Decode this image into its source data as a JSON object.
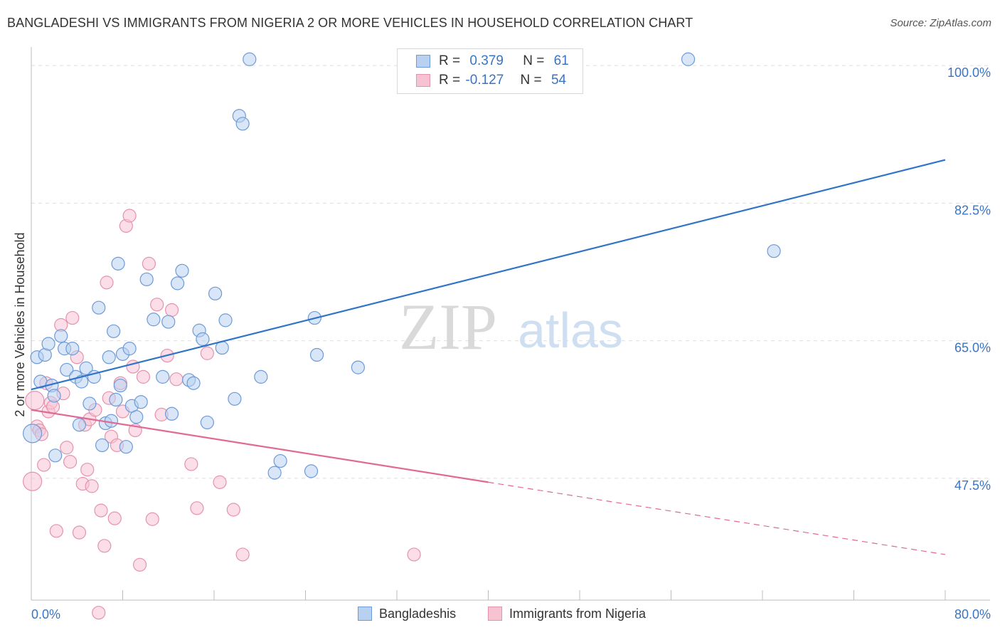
{
  "title": "BANGLADESHI VS IMMIGRANTS FROM NIGERIA 2 OR MORE VEHICLES IN HOUSEHOLD CORRELATION CHART",
  "source": "Source: ZipAtlas.com",
  "watermark": {
    "zip": "ZIP",
    "atlas": "atlas"
  },
  "colors": {
    "blue_fill": "#b8d1f0",
    "blue_stroke": "#6d9ad8",
    "blue_line": "#2f74c8",
    "pink_fill": "#f7c3d3",
    "pink_stroke": "#e593ad",
    "pink_line": "#e06a95",
    "tick_label": "#3a74c4"
  },
  "legend": {
    "rows": [
      {
        "r_label": "R =",
        "r_value": "0.379",
        "n_label": "N =",
        "n_value": "61"
      },
      {
        "r_label": "R =",
        "r_value": "-0.127",
        "n_label": "N =",
        "n_value": "54"
      }
    ]
  },
  "bottom_legend": [
    "Bangladeshis",
    "Immigrants from Nigeria"
  ],
  "chart_data": {
    "type": "scatter",
    "xlabel": "",
    "ylabel": "2 or more Vehicles in Household",
    "xlim": [
      0,
      80
    ],
    "ylim": [
      32,
      102
    ],
    "x_tick_labels": [
      "0.0%",
      "80.0%"
    ],
    "y_ticks": [
      100,
      82.5,
      65,
      47.5
    ],
    "y_tick_labels": [
      "100.0%",
      "82.5%",
      "65.0%",
      "47.5%"
    ],
    "series": [
      {
        "name": "Bangladeshis",
        "r": 0.379,
        "n": 61,
        "trend": {
          "x0": 0,
          "y0": 58.8,
          "x1": 80,
          "y1": 88.0
        },
        "points": [
          [
            0.1,
            53.2
          ],
          [
            0.5,
            62.9
          ],
          [
            0.8,
            59.8
          ],
          [
            1.2,
            63.2
          ],
          [
            1.5,
            64.6
          ],
          [
            1.8,
            59.3
          ],
          [
            2.0,
            58.0
          ],
          [
            2.1,
            50.4
          ],
          [
            2.6,
            65.6
          ],
          [
            2.9,
            64.0
          ],
          [
            3.1,
            61.3
          ],
          [
            3.6,
            64.0
          ],
          [
            3.9,
            60.4
          ],
          [
            4.2,
            54.3
          ],
          [
            4.4,
            59.8
          ],
          [
            4.8,
            61.5
          ],
          [
            5.1,
            57.0
          ],
          [
            5.5,
            60.4
          ],
          [
            5.9,
            69.2
          ],
          [
            6.2,
            51.7
          ],
          [
            6.5,
            54.5
          ],
          [
            6.8,
            62.9
          ],
          [
            7.0,
            54.8
          ],
          [
            7.2,
            66.2
          ],
          [
            7.4,
            57.5
          ],
          [
            7.6,
            74.8
          ],
          [
            7.8,
            59.3
          ],
          [
            8.0,
            63.3
          ],
          [
            8.3,
            51.5
          ],
          [
            8.6,
            64.0
          ],
          [
            8.8,
            56.7
          ],
          [
            9.2,
            55.3
          ],
          [
            9.6,
            57.2
          ],
          [
            10.1,
            72.8
          ],
          [
            10.7,
            67.7
          ],
          [
            11.5,
            60.4
          ],
          [
            12.0,
            67.4
          ],
          [
            12.3,
            55.7
          ],
          [
            12.8,
            72.3
          ],
          [
            13.2,
            73.9
          ],
          [
            13.8,
            60.0
          ],
          [
            14.2,
            59.6
          ],
          [
            14.7,
            66.3
          ],
          [
            15.0,
            65.2
          ],
          [
            15.4,
            54.6
          ],
          [
            16.1,
            71.0
          ],
          [
            16.7,
            64.1
          ],
          [
            17.0,
            67.6
          ],
          [
            17.8,
            57.6
          ],
          [
            18.2,
            93.6
          ],
          [
            18.5,
            92.6
          ],
          [
            19.1,
            100.8
          ],
          [
            20.1,
            60.4
          ],
          [
            21.3,
            48.2
          ],
          [
            21.8,
            49.7
          ],
          [
            24.5,
            48.4
          ],
          [
            24.8,
            67.9
          ],
          [
            25.0,
            63.2
          ],
          [
            28.6,
            61.6
          ],
          [
            57.5,
            100.8
          ],
          [
            65.0,
            76.4
          ]
        ]
      },
      {
        "name": "Immigrants from Nigeria",
        "r": -0.127,
        "n": 54,
        "trend": {
          "x0": 0,
          "y0": 56.2,
          "x1": 40,
          "y1": 47.0,
          "dash_x0": 40,
          "dash_y0": 47.0,
          "dash_x1": 80,
          "dash_y1": 37.8
        },
        "points": [
          [
            0.1,
            47.1
          ],
          [
            0.3,
            57.4
          ],
          [
            0.5,
            54.1
          ],
          [
            0.7,
            53.6
          ],
          [
            0.9,
            53.1
          ],
          [
            1.1,
            49.2
          ],
          [
            1.3,
            59.6
          ],
          [
            1.5,
            56.0
          ],
          [
            1.7,
            57.1
          ],
          [
            1.9,
            56.6
          ],
          [
            2.2,
            40.8
          ],
          [
            2.6,
            67.0
          ],
          [
            2.8,
            58.3
          ],
          [
            3.1,
            51.4
          ],
          [
            3.4,
            49.6
          ],
          [
            3.6,
            67.9
          ],
          [
            4.0,
            62.9
          ],
          [
            4.2,
            40.6
          ],
          [
            4.5,
            46.8
          ],
          [
            4.7,
            54.3
          ],
          [
            4.9,
            48.6
          ],
          [
            5.1,
            55.0
          ],
          [
            5.3,
            46.5
          ],
          [
            5.6,
            56.2
          ],
          [
            5.9,
            30.4
          ],
          [
            6.1,
            43.4
          ],
          [
            6.4,
            38.9
          ],
          [
            6.6,
            72.4
          ],
          [
            6.8,
            57.7
          ],
          [
            7.0,
            52.8
          ],
          [
            7.3,
            42.4
          ],
          [
            7.5,
            51.7
          ],
          [
            7.8,
            59.6
          ],
          [
            8.0,
            56.0
          ],
          [
            8.3,
            79.6
          ],
          [
            8.6,
            80.9
          ],
          [
            8.9,
            61.7
          ],
          [
            9.1,
            53.6
          ],
          [
            9.5,
            36.5
          ],
          [
            9.8,
            60.4
          ],
          [
            10.3,
            74.8
          ],
          [
            10.6,
            42.3
          ],
          [
            11.0,
            69.6
          ],
          [
            11.4,
            55.6
          ],
          [
            11.9,
            63.1
          ],
          [
            12.3,
            68.9
          ],
          [
            12.7,
            60.1
          ],
          [
            14.0,
            49.3
          ],
          [
            14.5,
            43.7
          ],
          [
            15.4,
            63.4
          ],
          [
            16.5,
            47.0
          ],
          [
            17.7,
            43.5
          ],
          [
            18.5,
            37.8
          ],
          [
            33.5,
            37.8
          ]
        ]
      }
    ]
  }
}
